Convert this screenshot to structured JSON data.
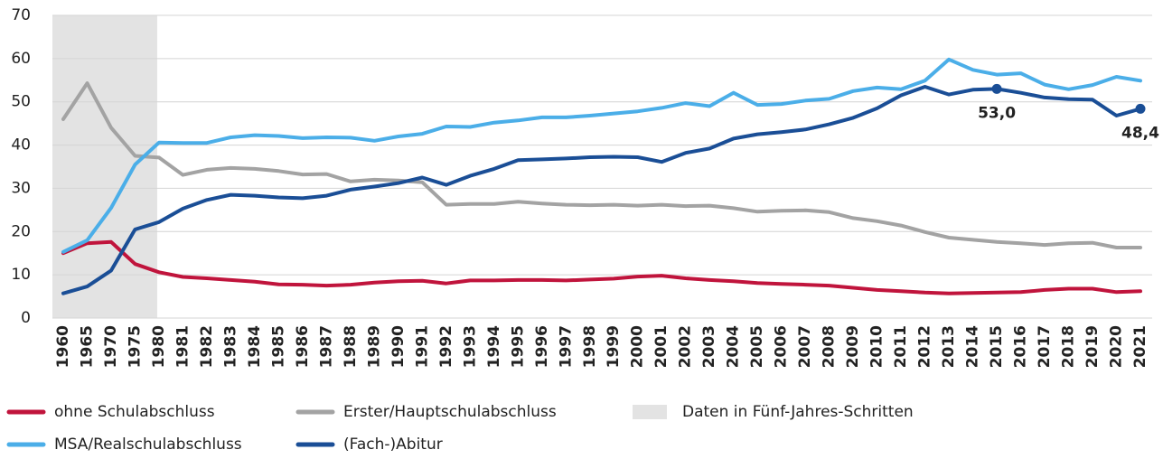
{
  "chart_data": {
    "type": "line",
    "categories": [
      "1960",
      "1965",
      "1970",
      "1975",
      "1980",
      "1981",
      "1982",
      "1983",
      "1984",
      "1985",
      "1986",
      "1987",
      "1988",
      "1989",
      "1990",
      "1991",
      "1992",
      "1993",
      "1994",
      "1995",
      "1996",
      "1997",
      "1998",
      "1999",
      "2000",
      "2001",
      "2002",
      "2003",
      "2004",
      "2005",
      "2006",
      "2007",
      "2008",
      "2009",
      "2010",
      "2011",
      "2012",
      "2013",
      "2014",
      "2015",
      "2016",
      "2017",
      "2018",
      "2019",
      "2020",
      "2021"
    ],
    "series": [
      {
        "name": "ohne Schulabschluss",
        "color": "#c0143c",
        "values": [
          15,
          17.3,
          17.6,
          12.5,
          10.6,
          9.5,
          9.2,
          8.8,
          8.4,
          7.8,
          7.7,
          7.5,
          7.7,
          8.2,
          8.5,
          8.6,
          8.0,
          8.7,
          8.7,
          8.8,
          8.8,
          8.7,
          8.9,
          9.1,
          9.6,
          9.8,
          9.2,
          8.8,
          8.5,
          8.1,
          7.9,
          7.7,
          7.5,
          7.0,
          6.5,
          6.2,
          5.9,
          5.7,
          5.8,
          5.9,
          6.0,
          6.5,
          6.8,
          6.8,
          6.0,
          6.2
        ]
      },
      {
        "name": "Erster/Hauptschulabschluss",
        "color": "#a3a3a3",
        "values": [
          46,
          54.3,
          44,
          37.5,
          37.1,
          33.1,
          34.3,
          34.7,
          34.5,
          34.0,
          33.2,
          33.3,
          31.6,
          32.0,
          31.8,
          31.4,
          26.2,
          26.4,
          26.4,
          26.9,
          26.5,
          26.2,
          26.1,
          26.2,
          26.0,
          26.2,
          25.9,
          26.0,
          25.4,
          24.6,
          24.8,
          24.9,
          24.5,
          23.1,
          22.4,
          21.4,
          19.9,
          18.6,
          18.1,
          17.6,
          17.3,
          16.9,
          17.3,
          17.4,
          16.3,
          16.3
        ]
      },
      {
        "name": "MSA/Realschulabschluss",
        "color": "#4baee8",
        "values": [
          15.3,
          18,
          25.5,
          35.5,
          40.6,
          40.5,
          40.5,
          41.8,
          42.3,
          42.1,
          41.6,
          41.8,
          41.7,
          41.0,
          42.0,
          42.6,
          44.3,
          44.2,
          45.2,
          45.7,
          46.4,
          46.4,
          46.8,
          47.3,
          47.8,
          48.6,
          49.7,
          49.0,
          52.1,
          49.3,
          49.5,
          50.3,
          50.7,
          52.5,
          53.3,
          52.9,
          54.9,
          59.8,
          57.4,
          56.3,
          56.6,
          54.0,
          52.9,
          53.9,
          55.8,
          54.9
        ]
      },
      {
        "name": "(Fach-)Abitur",
        "color": "#1a4e96",
        "values": [
          5.7,
          7.3,
          11,
          20.5,
          22.2,
          25.3,
          27.3,
          28.5,
          28.3,
          27.9,
          27.7,
          28.3,
          29.7,
          30.4,
          31.2,
          32.5,
          30.8,
          32.9,
          34.5,
          36.5,
          36.7,
          36.9,
          37.2,
          37.3,
          37.2,
          36.1,
          38.2,
          39.2,
          41.5,
          42.5,
          43.0,
          43.6,
          44.8,
          46.3,
          48.5,
          51.5,
          53.5,
          51.7,
          52.8,
          53.0,
          52.1,
          51.0,
          50.6,
          50.5,
          46.8,
          48.4
        ],
        "value_labels": [
          null,
          null,
          null,
          null,
          null,
          null,
          null,
          null,
          null,
          null,
          null,
          null,
          null,
          null,
          null,
          null,
          null,
          null,
          null,
          null,
          null,
          null,
          null,
          null,
          null,
          null,
          null,
          null,
          null,
          null,
          null,
          null,
          null,
          null,
          null,
          null,
          null,
          null,
          null,
          "53,0",
          null,
          null,
          null,
          null,
          null,
          "48,4"
        ]
      }
    ],
    "shaded_range": {
      "label": "Daten in Fünf-Jahres-Schritten",
      "color": "#e3e3e3",
      "from": "1960",
      "to": "1980"
    },
    "ylim": [
      0,
      70
    ],
    "yticks": [
      0,
      10,
      20,
      30,
      40,
      50,
      60,
      70
    ],
    "grid": true
  }
}
